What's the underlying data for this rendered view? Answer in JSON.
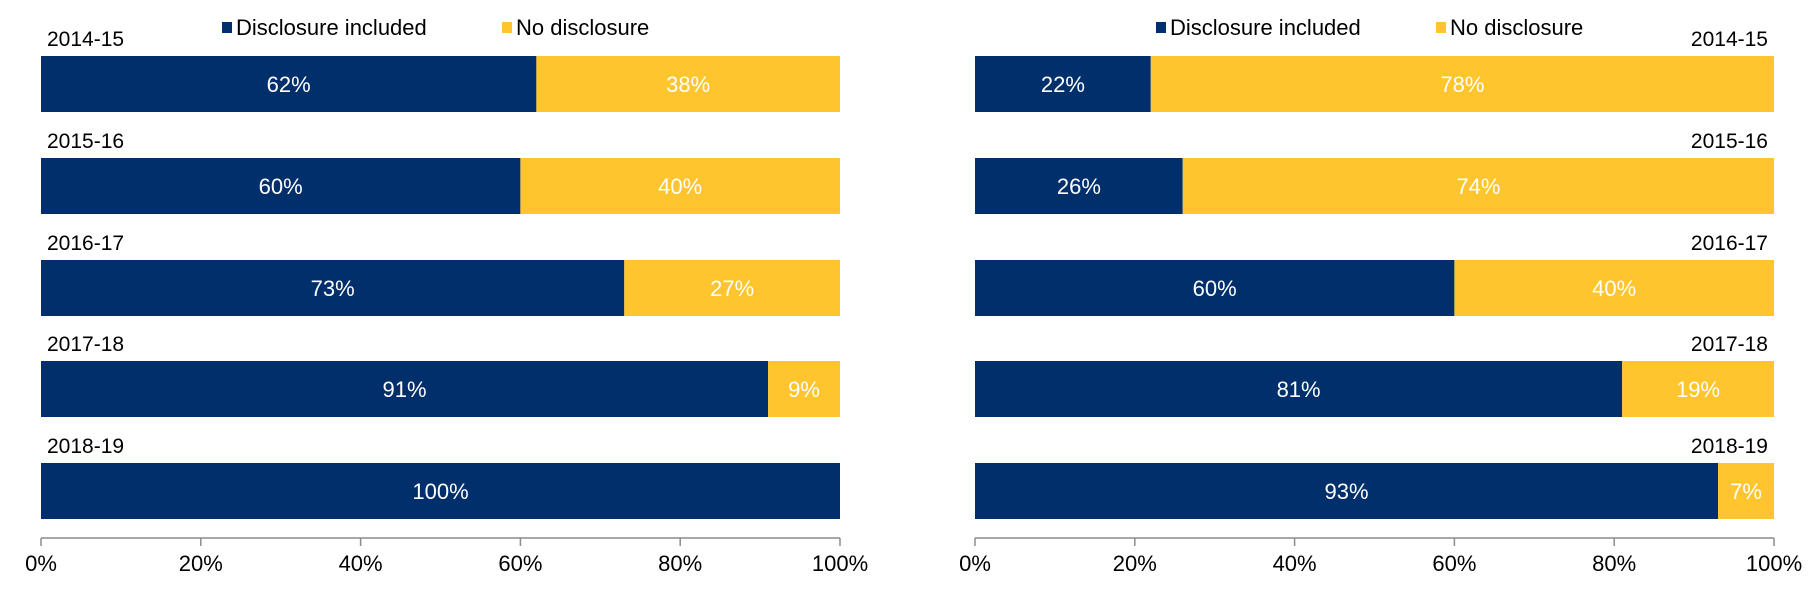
{
  "colors": {
    "disclosure": "#002F6C",
    "no_disclosure": "#FEC52E",
    "axis": "#8C8C8C",
    "text": "#000000",
    "label": "#FFFFFF"
  },
  "chart_data": [
    {
      "type": "bar",
      "orientation": "horizontal",
      "stacked": true,
      "legend_position": "top",
      "xlim": [
        0,
        100
      ],
      "ticks": [
        "0%",
        "20%",
        "40%",
        "60%",
        "80%",
        "100%"
      ],
      "tick_values": [
        0,
        20,
        40,
        60,
        80,
        100
      ],
      "categories": [
        "2014-15",
        "2015-16",
        "2016-17",
        "2017-18",
        "2018-19"
      ],
      "series": [
        {
          "name": "Disclosure included",
          "values": [
            62,
            60,
            73,
            91,
            100
          ],
          "labels": [
            "62%",
            "60%",
            "73%",
            "91%",
            "100%"
          ]
        },
        {
          "name": "No disclosure",
          "values": [
            38,
            40,
            27,
            9,
            0
          ],
          "labels": [
            "38%",
            "40%",
            "27%",
            "9%",
            ""
          ]
        }
      ]
    },
    {
      "type": "bar",
      "orientation": "horizontal",
      "stacked": true,
      "legend_position": "top",
      "xlim": [
        0,
        100
      ],
      "ticks": [
        "0%",
        "20%",
        "40%",
        "60%",
        "80%",
        "100%"
      ],
      "tick_values": [
        0,
        20,
        40,
        60,
        80,
        100
      ],
      "categories": [
        "2014-15",
        "2015-16",
        "2016-17",
        "2017-18",
        "2018-19"
      ],
      "series": [
        {
          "name": "Disclosure included",
          "values": [
            22,
            26,
            60,
            81,
            93
          ],
          "labels": [
            "22%",
            "26%",
            "60%",
            "81%",
            "93%"
          ]
        },
        {
          "name": "No disclosure",
          "values": [
            78,
            74,
            40,
            19,
            7
          ],
          "labels": [
            "78%",
            "74%",
            "40%",
            "19%",
            "7%"
          ]
        }
      ]
    }
  ]
}
